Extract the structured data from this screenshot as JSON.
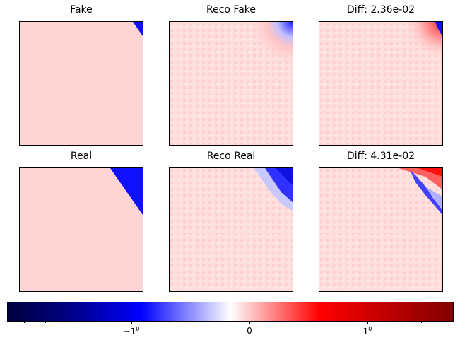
{
  "panels": [
    {
      "title": "Fake"
    },
    {
      "title": "Reco Fake"
    },
    {
      "title": "Diff: 2.36e-02"
    },
    {
      "title": "Real"
    },
    {
      "title": "Reco Real"
    },
    {
      "title": "Diff: 4.31e-02"
    }
  ],
  "chart_data": {
    "type": "heatmap",
    "layout": "2 rows x 3 columns of image panels with a shared horizontal colorbar",
    "colormap": "seismic",
    "axes_ticks_visible": false,
    "colorbar": {
      "scale": "symlog",
      "tick_labels": [
        {
          "base": "−1",
          "exp": "0",
          "value": -1
        },
        {
          "base": "0",
          "exp": "",
          "value": 0
        },
        {
          "base": "1",
          "exp": "0",
          "value": 1
        }
      ]
    },
    "colors": {
      "background_light_red": "#ffd4d4",
      "blue": "#1010ff",
      "red": "#ff1010"
    }
  }
}
